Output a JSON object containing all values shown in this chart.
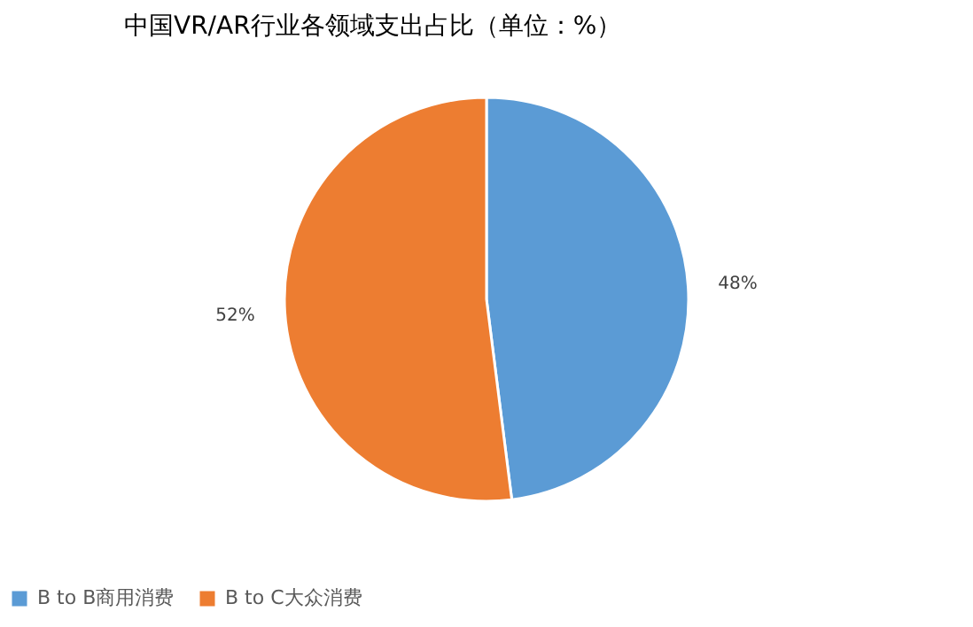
{
  "chart_data": {
    "type": "pie",
    "title": "中国VR/AR行业各领域支出占比（单位：%）",
    "categories": [
      "B to B商用消费",
      "B to C大众消费"
    ],
    "values": [
      48,
      52
    ],
    "colors": [
      "#5b9bd5",
      "#ed7d31"
    ],
    "value_labels": [
      "48%",
      "52%"
    ],
    "legend": "bottom"
  }
}
